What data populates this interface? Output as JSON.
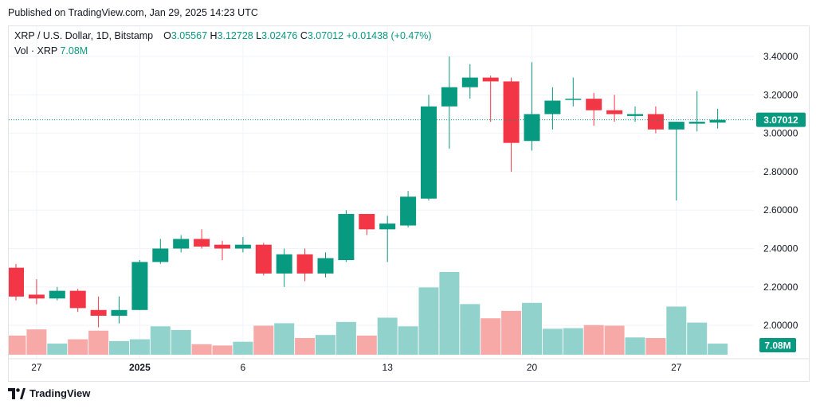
{
  "published": "Published on TradingView.com, Jan 29, 2025 14:23 UTC",
  "legend": {
    "title": "XRP / U.S. Dollar, 1D, Bitstamp",
    "o_label": "O",
    "o_value": "3.05567",
    "h_label": "H",
    "h_value": "3.12728",
    "l_label": "L",
    "l_value": "3.02476",
    "c_label": "C",
    "c_value": "3.07012",
    "change": "+0.01438 (+0.47%)",
    "vol_label": "Vol · XRP",
    "vol_value": "7.08M"
  },
  "brand": "TradingView",
  "colors": {
    "up": "#089981",
    "down": "#f23645",
    "vol_up": "#92d2cc",
    "vol_down": "#f7a9a7",
    "grid": "#f0f3fa",
    "text": "#131722"
  },
  "chart_data": {
    "type": "candlestick",
    "symbol": "XRP / U.S. Dollar, 1D, Bitstamp",
    "y_ticks": [
      "3.40000",
      "3.20000",
      "3.00000",
      "2.80000",
      "2.60000",
      "2.40000",
      "2.20000",
      "2.00000"
    ],
    "ylim": [
      1.85,
      3.53
    ],
    "x_ticks": [
      {
        "label": "27",
        "index": 1
      },
      {
        "label": "2025",
        "index": 6
      },
      {
        "label": "6",
        "index": 11
      },
      {
        "label": "13",
        "index": 18
      },
      {
        "label": "20",
        "index": 25
      },
      {
        "label": "27",
        "index": 32
      }
    ],
    "last_price": "3.07012",
    "last_volume": "7.08M",
    "candles": [
      {
        "date": "2024-12-26",
        "o": 2.3,
        "h": 2.32,
        "l": 2.13,
        "c": 2.15,
        "v": 1.55
      },
      {
        "date": "2024-12-27",
        "o": 2.16,
        "h": 2.24,
        "l": 2.11,
        "c": 2.14,
        "v": 2.05
      },
      {
        "date": "2024-12-28",
        "o": 2.14,
        "h": 2.2,
        "l": 2.13,
        "c": 2.18,
        "v": 0.9
      },
      {
        "date": "2024-12-29",
        "o": 2.18,
        "h": 2.19,
        "l": 2.07,
        "c": 2.09,
        "v": 1.25
      },
      {
        "date": "2024-12-30",
        "o": 2.08,
        "h": 2.15,
        "l": 1.99,
        "c": 2.05,
        "v": 1.95
      },
      {
        "date": "2024-12-31",
        "o": 2.05,
        "h": 2.15,
        "l": 2.01,
        "c": 2.08,
        "v": 1.1
      },
      {
        "date": "2025-01-01",
        "o": 2.08,
        "h": 2.34,
        "l": 2.08,
        "c": 2.33,
        "v": 1.25
      },
      {
        "date": "2025-01-02",
        "o": 2.33,
        "h": 2.45,
        "l": 2.32,
        "c": 2.4,
        "v": 2.3
      },
      {
        "date": "2025-01-03",
        "o": 2.4,
        "h": 2.47,
        "l": 2.38,
        "c": 2.45,
        "v": 2.0
      },
      {
        "date": "2025-01-04",
        "o": 2.45,
        "h": 2.5,
        "l": 2.4,
        "c": 2.41,
        "v": 0.85
      },
      {
        "date": "2025-01-05",
        "o": 2.42,
        "h": 2.44,
        "l": 2.34,
        "c": 2.4,
        "v": 0.75
      },
      {
        "date": "2025-01-06",
        "o": 2.4,
        "h": 2.46,
        "l": 2.38,
        "c": 2.42,
        "v": 1.05
      },
      {
        "date": "2025-01-07",
        "o": 2.42,
        "h": 2.43,
        "l": 2.26,
        "c": 2.27,
        "v": 2.35
      },
      {
        "date": "2025-01-08",
        "o": 2.27,
        "h": 2.4,
        "l": 2.2,
        "c": 2.37,
        "v": 2.55
      },
      {
        "date": "2025-01-09",
        "o": 2.37,
        "h": 2.4,
        "l": 2.23,
        "c": 2.27,
        "v": 1.35
      },
      {
        "date": "2025-01-10",
        "o": 2.27,
        "h": 2.38,
        "l": 2.25,
        "c": 2.35,
        "v": 1.6
      },
      {
        "date": "2025-01-11",
        "o": 2.34,
        "h": 2.6,
        "l": 2.33,
        "c": 2.58,
        "v": 2.65
      },
      {
        "date": "2025-01-12",
        "o": 2.58,
        "h": 2.58,
        "l": 2.47,
        "c": 2.5,
        "v": 1.55
      },
      {
        "date": "2025-01-13",
        "o": 2.5,
        "h": 2.57,
        "l": 2.33,
        "c": 2.53,
        "v": 3.0
      },
      {
        "date": "2025-01-14",
        "o": 2.52,
        "h": 2.7,
        "l": 2.51,
        "c": 2.67,
        "v": 2.3
      },
      {
        "date": "2025-01-15",
        "o": 2.66,
        "h": 3.2,
        "l": 2.65,
        "c": 3.14,
        "v": 5.45
      },
      {
        "date": "2025-01-16",
        "o": 3.14,
        "h": 3.4,
        "l": 2.92,
        "c": 3.24,
        "v": 6.7
      },
      {
        "date": "2025-01-17",
        "o": 3.24,
        "h": 3.36,
        "l": 3.18,
        "c": 3.29,
        "v": 4.1
      },
      {
        "date": "2025-01-18",
        "o": 3.29,
        "h": 3.3,
        "l": 3.06,
        "c": 3.27,
        "v": 2.95
      },
      {
        "date": "2025-01-19",
        "o": 3.27,
        "h": 3.29,
        "l": 2.8,
        "c": 2.95,
        "v": 3.55
      },
      {
        "date": "2025-01-20",
        "o": 2.96,
        "h": 3.37,
        "l": 2.91,
        "c": 3.1,
        "v": 4.2
      },
      {
        "date": "2025-01-21",
        "o": 3.1,
        "h": 3.24,
        "l": 3.02,
        "c": 3.17,
        "v": 2.1
      },
      {
        "date": "2025-01-22",
        "o": 3.18,
        "h": 3.29,
        "l": 3.14,
        "c": 3.18,
        "v": 2.15
      },
      {
        "date": "2025-01-23",
        "o": 3.18,
        "h": 3.21,
        "l": 3.04,
        "c": 3.12,
        "v": 2.4
      },
      {
        "date": "2025-01-24",
        "o": 3.12,
        "h": 3.2,
        "l": 3.06,
        "c": 3.1,
        "v": 2.35
      },
      {
        "date": "2025-01-25",
        "o": 3.09,
        "h": 3.14,
        "l": 3.06,
        "c": 3.1,
        "v": 1.4
      },
      {
        "date": "2025-01-26",
        "o": 3.1,
        "h": 3.14,
        "l": 3.0,
        "c": 3.02,
        "v": 1.35
      },
      {
        "date": "2025-01-27",
        "o": 3.02,
        "h": 3.06,
        "l": 2.65,
        "c": 3.06,
        "v": 3.9
      },
      {
        "date": "2025-01-28",
        "o": 3.05,
        "h": 3.22,
        "l": 3.01,
        "c": 3.06,
        "v": 2.6
      },
      {
        "date": "2025-01-29",
        "o": 3.05567,
        "h": 3.12728,
        "l": 3.02476,
        "c": 3.07012,
        "v": 0.9
      }
    ]
  }
}
